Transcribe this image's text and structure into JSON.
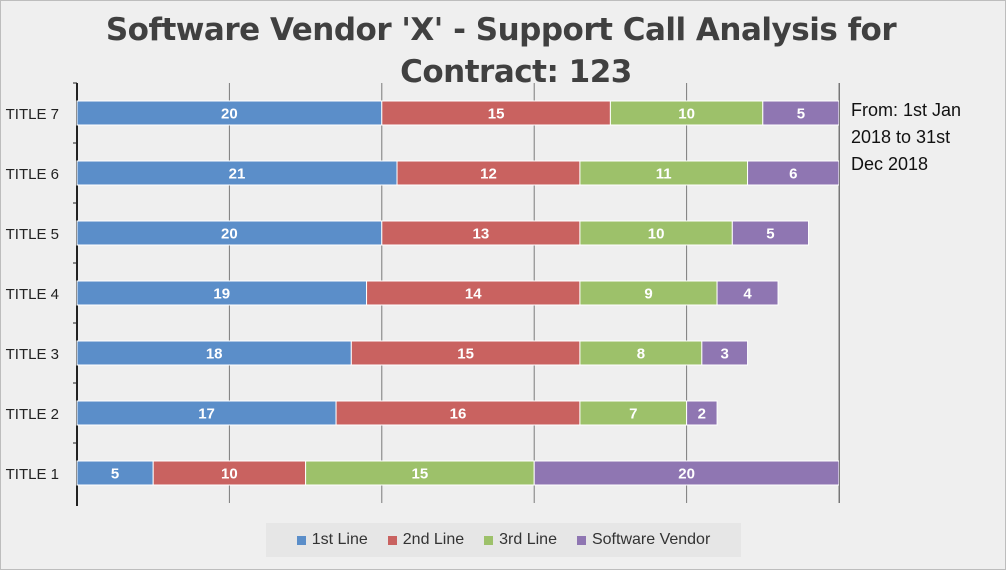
{
  "title_line1": "Software Vendor 'X' - Support Call Analysis for",
  "title_line2": "Contract: 123",
  "note_lines": [
    "From: 1st Jan",
    "2018 to 31st",
    "Dec 2018"
  ],
  "colors": {
    "1st Line": "#5b8ec9",
    "2nd Line": "#c96260",
    "3rd Line": "#9dc16a",
    "Software Vendor": "#8f76b2"
  },
  "chart_data": {
    "type": "bar",
    "orientation": "horizontal",
    "stacked": true,
    "categories": [
      "TITLE 7",
      "TITLE 6",
      "TITLE 5",
      "TITLE 4",
      "TITLE 3",
      "TITLE 2",
      "TITLE 1"
    ],
    "series": [
      {
        "name": "1st Line",
        "values": [
          20,
          21,
          20,
          19,
          18,
          17,
          5
        ]
      },
      {
        "name": "2nd Line",
        "values": [
          15,
          12,
          13,
          14,
          15,
          16,
          10
        ]
      },
      {
        "name": "3rd Line",
        "values": [
          10,
          11,
          10,
          9,
          8,
          7,
          15
        ]
      },
      {
        "name": "Software Vendor",
        "values": [
          5,
          6,
          5,
          4,
          3,
          2,
          20
        ]
      }
    ],
    "xlim": [
      0,
      50
    ],
    "grid": true,
    "legend": "bottom",
    "data_labels": true
  }
}
